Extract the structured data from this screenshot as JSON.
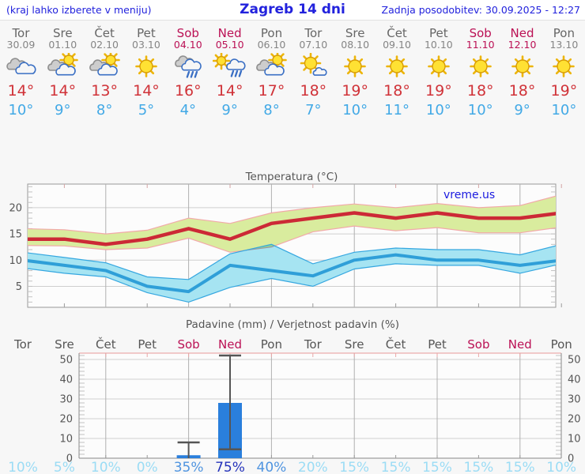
{
  "header": {
    "left_note": "(kraj lahko izberete v meniju)",
    "title": "Zagreb 14 dni",
    "updated": "Zadnja posodobitev: 30.09.2025 - 12:27"
  },
  "colors": {
    "link_blue": "#2222dd",
    "weekday_gray": "#666666",
    "weekend_red": "#bb1155",
    "temp_high_red": "#d03238",
    "temp_low_blue": "#42a9e6",
    "bar_blue": "#2a7fdc",
    "prob_low": "#9bdcf5",
    "prob_mid": "#4f94e0",
    "prob_high": "#2533bb",
    "max_band_fill": "#d9ec9e",
    "max_band_edge": "#f2a9a9",
    "min_band_fill": "#a6e4f2",
    "min_band_edge": "#35a7e0"
  },
  "days": [
    {
      "name": "Tor",
      "date": "30.09",
      "icon": "cloudy-icon",
      "high": "14°",
      "low": "10°",
      "weekend": false
    },
    {
      "name": "Sre",
      "date": "01.10",
      "icon": "partly-cloudy-icon",
      "high": "14°",
      "low": "9°",
      "weekend": false
    },
    {
      "name": "Čet",
      "date": "02.10",
      "icon": "partly-cloudy-icon",
      "high": "13°",
      "low": "8°",
      "weekend": false
    },
    {
      "name": "Pet",
      "date": "03.10",
      "icon": "sunny-icon",
      "high": "14°",
      "low": "5°",
      "weekend": false
    },
    {
      "name": "Sob",
      "date": "04.10",
      "icon": "rain-icon",
      "high": "16°",
      "low": "4°",
      "weekend": true
    },
    {
      "name": "Ned",
      "date": "05.10",
      "icon": "sun-rain-icon",
      "high": "14°",
      "low": "9°",
      "weekend": true
    },
    {
      "name": "Pon",
      "date": "06.10",
      "icon": "partly-cloudy-icon",
      "high": "17°",
      "low": "8°",
      "weekend": false
    },
    {
      "name": "Tor",
      "date": "07.10",
      "icon": "mostly-sunny-icon",
      "high": "18°",
      "low": "7°",
      "weekend": false
    },
    {
      "name": "Sre",
      "date": "08.10",
      "icon": "sunny-icon",
      "high": "19°",
      "low": "10°",
      "weekend": false
    },
    {
      "name": "Čet",
      "date": "09.10",
      "icon": "sunny-icon",
      "high": "18°",
      "low": "11°",
      "weekend": false
    },
    {
      "name": "Pet",
      "date": "10.10",
      "icon": "sunny-icon",
      "high": "19°",
      "low": "10°",
      "weekend": false
    },
    {
      "name": "Sob",
      "date": "11.10",
      "icon": "sunny-icon",
      "high": "18°",
      "low": "10°",
      "weekend": true
    },
    {
      "name": "Ned",
      "date": "12.10",
      "icon": "sunny-icon",
      "high": "18°",
      "low": "9°",
      "weekend": true
    },
    {
      "name": "Pon",
      "date": "13.10",
      "icon": "sunny-icon",
      "high": "19°",
      "low": "10°",
      "weekend": false
    }
  ],
  "chart_data": [
    {
      "type": "line",
      "title": "Temperatura (°C)",
      "watermark": "vreme.us",
      "x_labels": [
        "Tor",
        "Sre",
        "Čet",
        "Pet",
        "Sob",
        "Ned",
        "Pon",
        "Tor",
        "Sre",
        "Čet",
        "Pet",
        "Sob",
        "Ned",
        "Pon"
      ],
      "ylim": [
        1,
        24.5
      ],
      "yticks": [
        5,
        10,
        15,
        20
      ],
      "grid_days": [
        2,
        4,
        6,
        8,
        10,
        12
      ],
      "series": [
        {
          "name": "max-temperature",
          "color": "#cc2936",
          "width": 4.5,
          "values": [
            14,
            14,
            13,
            14,
            16,
            14,
            17,
            18,
            19,
            18,
            19,
            18,
            18,
            19
          ]
        },
        {
          "name": "min-temperature",
          "color": "#2f9fd8",
          "width": 4,
          "values": [
            10,
            9,
            8,
            5,
            4,
            9,
            8,
            7,
            10,
            11,
            10,
            10,
            9,
            10
          ]
        }
      ],
      "bands": [
        {
          "name": "max-range",
          "fill": "#d9ec9e",
          "edge": "#f2a9a9",
          "upper": [
            16,
            15.8,
            15,
            15.7,
            18,
            17,
            19,
            20,
            20.7,
            20,
            20.8,
            20,
            20.4,
            22.5
          ],
          "lower": [
            12.8,
            12.7,
            12,
            12.3,
            14.2,
            11.5,
            12.5,
            15.4,
            16.5,
            15.6,
            16.2,
            15.2,
            15.2,
            16.3
          ]
        },
        {
          "name": "min-range",
          "fill": "#a6e4f2",
          "edge": "#35a7e0",
          "blend": "multiply",
          "upper": [
            11.5,
            10.5,
            9.5,
            6.8,
            6.3,
            11.2,
            13,
            9.3,
            11.5,
            12.3,
            12,
            12,
            11,
            13
          ],
          "lower": [
            8.5,
            7.5,
            6.8,
            3.8,
            2,
            4.8,
            6.5,
            5,
            8.3,
            9.3,
            9,
            9,
            7.5,
            9.3
          ]
        }
      ]
    },
    {
      "type": "bar",
      "title": "Padavine (mm) / Verjetnost padavin (%)",
      "x_labels": [
        "Tor",
        "Sre",
        "Čet",
        "Pet",
        "Sob",
        "Ned",
        "Pon",
        "Tor",
        "Sre",
        "Čet",
        "Pet",
        "Sob",
        "Ned",
        "Pon"
      ],
      "weekend_days": [
        4,
        5,
        11,
        12
      ],
      "ylim": [
        0,
        53.2
      ],
      "yticks": [
        0,
        10,
        20,
        30,
        40,
        50
      ],
      "grid_days": [
        2,
        4,
        6,
        8,
        10,
        12
      ],
      "bars_mm": [
        0,
        0,
        0,
        0,
        1.5,
        28,
        0,
        0,
        0,
        0,
        0,
        0,
        0,
        0
      ],
      "whiskers": [
        null,
        null,
        null,
        null,
        {
          "low": 0,
          "high": 8
        },
        {
          "low": 4.5,
          "high": 52
        },
        null,
        null,
        null,
        null,
        null,
        null,
        null,
        null
      ],
      "probability_pct": [
        10,
        5,
        10,
        0,
        35,
        75,
        40,
        20,
        15,
        15,
        15,
        15,
        15,
        10
      ],
      "bar_color": "#2a7fdc"
    }
  ]
}
